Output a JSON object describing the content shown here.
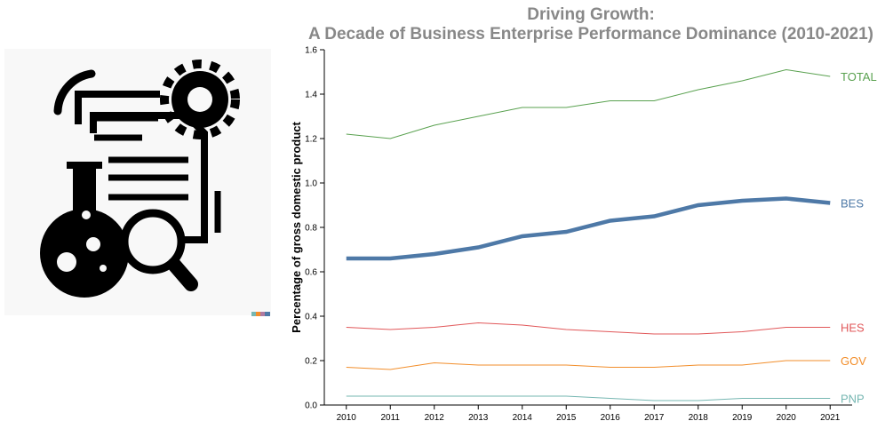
{
  "chart_data": {
    "type": "line",
    "title": [
      "Driving Growth:",
      "A Decade of Business Enterprise Performance Dominance (2010-2021)"
    ],
    "y_label": "Percentage of gross domestic product",
    "x": [
      2010,
      2011,
      2012,
      2013,
      2014,
      2015,
      2016,
      2017,
      2018,
      2019,
      2020,
      2021
    ],
    "xlim": [
      2009.5,
      2021.5
    ],
    "xticks": [
      2010,
      2011,
      2012,
      2013,
      2014,
      2015,
      2016,
      2017,
      2018,
      2019,
      2020,
      2021
    ],
    "ylim": [
      0,
      1.6
    ],
    "yticks": [
      {
        "value": 0,
        "label": "0.0"
      },
      0.2,
      0.4,
      0.6,
      0.8,
      {
        "value": 1,
        "label": "1.0"
      },
      1.2,
      1.4,
      1.6
    ],
    "grid": false,
    "series": [
      {
        "name": "TOTAL",
        "color": "#59a14f",
        "width": 1,
        "values": [
          1.22,
          1.2,
          1.26,
          1.3,
          1.34,
          1.34,
          1.37,
          1.37,
          1.42,
          1.46,
          1.51,
          1.48
        ]
      },
      {
        "name": "BES",
        "color": "#4e79a7",
        "width": 4.5,
        "values": [
          0.66,
          0.66,
          0.68,
          0.71,
          0.76,
          0.78,
          0.83,
          0.85,
          0.9,
          0.92,
          0.93,
          0.91
        ]
      },
      {
        "name": "HES",
        "color": "#e15759",
        "width": 1,
        "values": [
          0.35,
          0.34,
          0.35,
          0.37,
          0.36,
          0.34,
          0.33,
          0.32,
          0.32,
          0.33,
          0.35,
          0.35
        ]
      },
      {
        "name": "GOV",
        "color": "#f28e2b",
        "width": 1,
        "values": [
          0.17,
          0.16,
          0.19,
          0.18,
          0.18,
          0.18,
          0.17,
          0.17,
          0.18,
          0.18,
          0.2,
          0.2
        ]
      },
      {
        "name": "PNP",
        "color": "#76b7b2",
        "width": 1,
        "values": [
          0.04,
          0.04,
          0.04,
          0.04,
          0.04,
          0.04,
          0.03,
          0.02,
          0.02,
          0.03,
          0.03,
          0.03
        ]
      }
    ]
  }
}
